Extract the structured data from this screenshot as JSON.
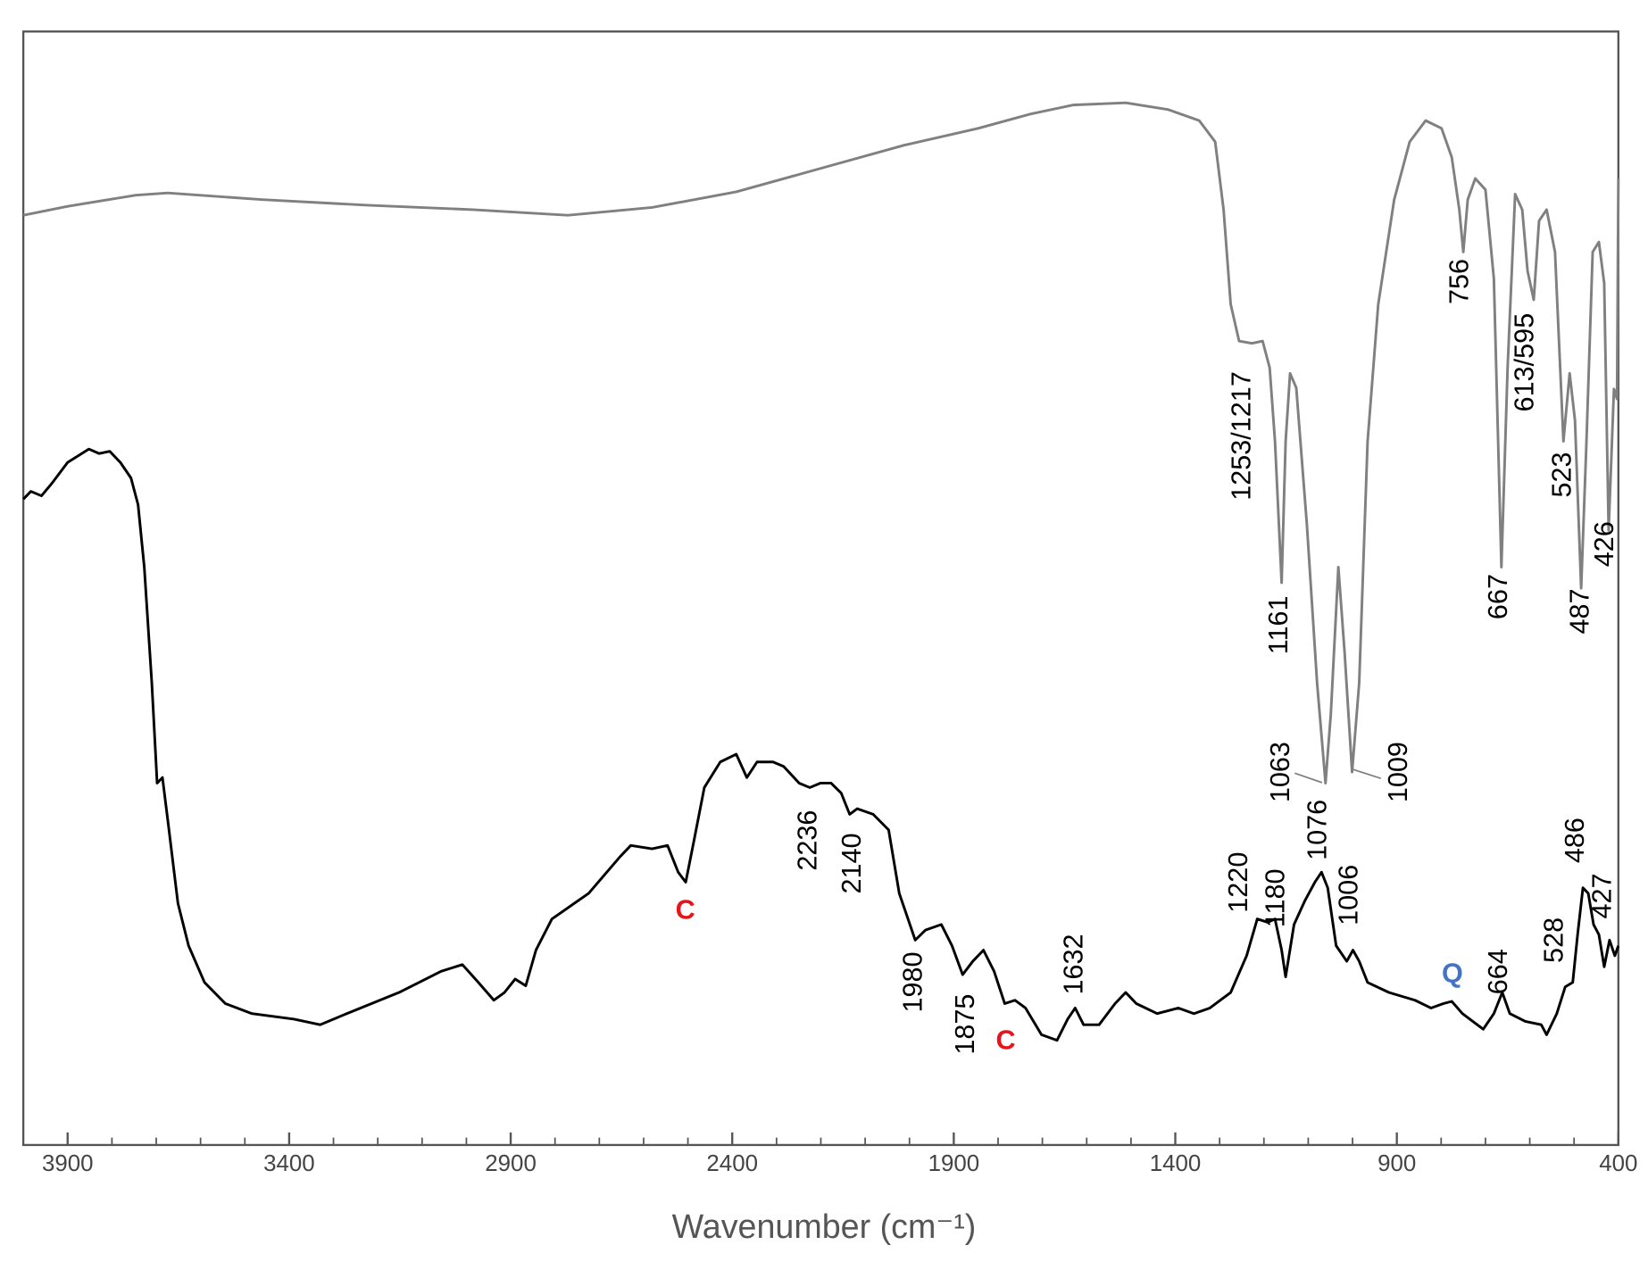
{
  "chart_data": {
    "type": "line",
    "xlabel": "Wavenumber (cm⁻¹)",
    "xlim": [
      4000,
      400
    ],
    "ylim": [
      0,
      100
    ],
    "xticks": [
      3900,
      3400,
      2900,
      2400,
      1900,
      1400,
      900,
      400
    ],
    "xminorticks": [
      3800,
      3700,
      3600,
      3500,
      3300,
      3200,
      3100,
      3000,
      2800,
      2700,
      2600,
      2500,
      2300,
      2200,
      2100,
      2000,
      1800,
      1700,
      1600,
      1500,
      1300,
      1200,
      1100,
      1000,
      800,
      700,
      600,
      500
    ],
    "series": [
      {
        "color": "#808080",
        "x": [
          4000,
          3900,
          3746,
          3674,
          3460,
          3223,
          2985,
          2771,
          2581,
          2391,
          2201,
          2011,
          1845,
          1726,
          1631,
          1512,
          1417,
          1346,
          1310,
          1291,
          1275,
          1256,
          1227,
          1203,
          1187,
          1175,
          1160,
          1151,
          1141,
          1127,
          1103,
          1080,
          1061,
          1049,
          1032,
          1018,
          1001,
          985,
          966,
          942,
          906,
          871,
          835,
          799,
          776,
          759,
          750,
          740,
          723,
          700,
          681,
          664,
          650,
          633,
          617,
          605,
          591,
          579,
          562,
          543,
          524,
          510,
          498,
          484,
          472,
          458,
          444,
          432,
          422,
          410,
          403,
          400
        ],
        "values": [
          83.5,
          84.3,
          85.3,
          85.5,
          84.9,
          84.4,
          84.0,
          83.5,
          84.2,
          85.6,
          87.7,
          89.8,
          91.3,
          92.6,
          93.4,
          93.6,
          93.0,
          92.0,
          90.1,
          84.0,
          75.5,
          72.2,
          72.0,
          72.2,
          69.8,
          63.2,
          50.5,
          63.2,
          69.3,
          68.0,
          55.7,
          41.5,
          32.5,
          38.7,
          51.9,
          44.3,
          33.5,
          41.5,
          63.2,
          75.5,
          84.9,
          90.1,
          92.0,
          91.3,
          88.7,
          84.0,
          80.2,
          84.9,
          86.8,
          85.8,
          77.8,
          51.9,
          69.8,
          85.4,
          84.0,
          78.5,
          75.9,
          83.0,
          84.0,
          80.2,
          63.2,
          69.3,
          65.1,
          50.0,
          63.2,
          80.2,
          81.1,
          77.4,
          55.2,
          67.9,
          67.0,
          86.8
        ]
      },
      {
        "color": "#000000",
        "x": [
          4000,
          3983,
          3959,
          3936,
          3900,
          3852,
          3829,
          3805,
          3781,
          3757,
          3741,
          3727,
          3710,
          3698,
          3686,
          3674,
          3651,
          3627,
          3591,
          3544,
          3484,
          3389,
          3330,
          3270,
          3152,
          3057,
          3009,
          2973,
          2938,
          2914,
          2890,
          2866,
          2843,
          2807,
          2724,
          2653,
          2629,
          2581,
          2546,
          2522,
          2505,
          2486,
          2463,
          2427,
          2391,
          2367,
          2344,
          2308,
          2284,
          2249,
          2225,
          2201,
          2177,
          2154,
          2135,
          2118,
          2082,
          2047,
          2023,
          1987,
          1964,
          1928,
          1904,
          1880,
          1857,
          1833,
          1809,
          1785,
          1762,
          1738,
          1702,
          1667,
          1643,
          1626,
          1607,
          1572,
          1536,
          1512,
          1488,
          1441,
          1393,
          1358,
          1322,
          1275,
          1239,
          1215,
          1191,
          1175,
          1160,
          1151,
          1132,
          1108,
          1085,
          1070,
          1056,
          1037,
          1013,
          999,
          985,
          966,
          918,
          859,
          823,
          795,
          776,
          752,
          705,
          681,
          662,
          645,
          610,
          574,
          562,
          539,
          520,
          503,
          492,
          480,
          468,
          456,
          444,
          432,
          420,
          408,
          400
        ],
        "values": [
          58.0,
          58.7,
          58.3,
          59.4,
          61.3,
          62.5,
          62.1,
          62.3,
          61.3,
          59.9,
          57.5,
          51.9,
          41.5,
          32.5,
          33.0,
          29.2,
          21.7,
          17.9,
          14.6,
          12.7,
          11.8,
          11.3,
          10.8,
          11.8,
          13.7,
          15.6,
          16.2,
          14.6,
          13.0,
          13.7,
          14.9,
          14.3,
          17.5,
          20.3,
          22.6,
          25.9,
          26.9,
          26.6,
          26.9,
          24.5,
          23.6,
          27.4,
          32.1,
          34.4,
          35.1,
          33.0,
          34.4,
          34.4,
          34.0,
          32.5,
          32.1,
          32.5,
          32.5,
          31.6,
          29.7,
          30.2,
          29.7,
          28.3,
          22.6,
          18.4,
          19.3,
          19.8,
          17.9,
          15.3,
          16.5,
          17.5,
          15.6,
          12.7,
          13.0,
          12.3,
          9.9,
          9.4,
          11.3,
          12.3,
          10.8,
          10.8,
          12.7,
          13.7,
          12.7,
          11.8,
          12.3,
          11.8,
          12.3,
          13.7,
          17.0,
          20.3,
          20.0,
          20.3,
          17.5,
          15.1,
          19.8,
          21.9,
          23.6,
          24.5,
          23.1,
          17.9,
          16.5,
          17.5,
          16.5,
          14.6,
          13.7,
          13.0,
          12.3,
          12.7,
          12.9,
          11.8,
          10.4,
          11.8,
          13.7,
          11.8,
          11.1,
          10.8,
          9.9,
          11.8,
          14.2,
          14.6,
          18.9,
          23.1,
          22.6,
          19.8,
          18.9,
          16.0,
          18.4,
          17.0,
          17.9
        ]
      }
    ],
    "annotations": [
      {
        "text": "1253/1217",
        "color": "#000000"
      },
      {
        "text": "1161",
        "color": "#000000"
      },
      {
        "text": "1063",
        "color": "#000000"
      },
      {
        "text": "1009",
        "color": "#000000"
      },
      {
        "text": "756",
        "color": "#000000"
      },
      {
        "text": "613/595",
        "color": "#000000"
      },
      {
        "text": "667",
        "color": "#000000"
      },
      {
        "text": "523",
        "color": "#000000"
      },
      {
        "text": "487",
        "color": "#000000"
      },
      {
        "text": "426",
        "color": "#000000"
      },
      {
        "text": "2236",
        "color": "#000000"
      },
      {
        "text": "2140",
        "color": "#000000"
      },
      {
        "text": "1980",
        "color": "#000000"
      },
      {
        "text": "1875",
        "color": "#000000"
      },
      {
        "text": "1632",
        "color": "#000000"
      },
      {
        "text": "1220",
        "color": "#000000"
      },
      {
        "text": "1180",
        "color": "#000000"
      },
      {
        "text": "1076",
        "color": "#000000"
      },
      {
        "text": "1006",
        "color": "#000000"
      },
      {
        "text": "664",
        "color": "#000000"
      },
      {
        "text": "528",
        "color": "#000000"
      },
      {
        "text": "486",
        "color": "#000000"
      },
      {
        "text": "427",
        "color": "#000000"
      },
      {
        "text": "C",
        "color": "#e8141c"
      },
      {
        "text": "C",
        "color": "#e8141c"
      },
      {
        "text": "Q",
        "color": "#4472c4"
      }
    ]
  }
}
